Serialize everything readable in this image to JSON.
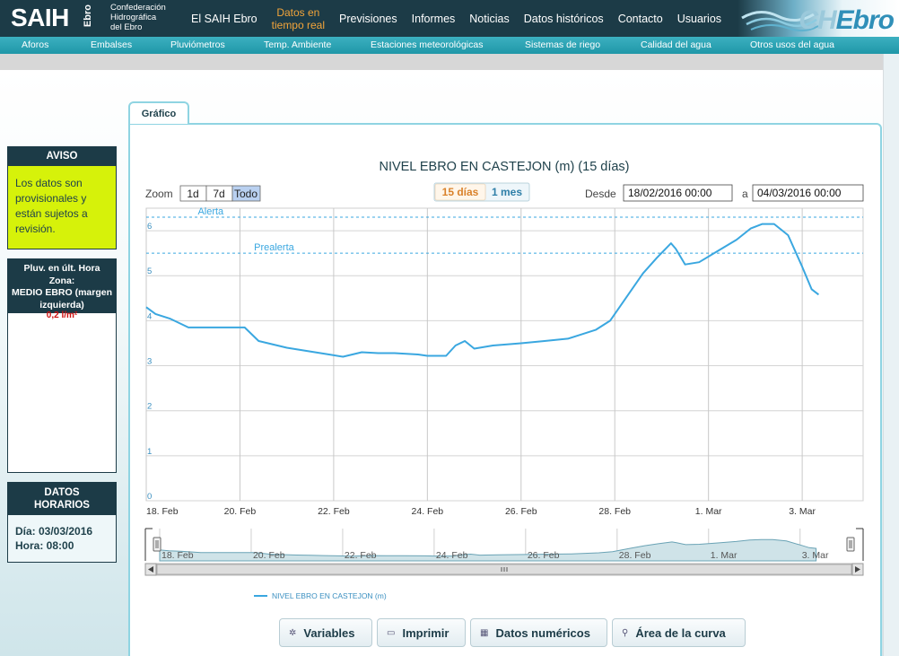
{
  "header": {
    "logo_main": "SAIH",
    "logo_sub": "Ebro",
    "org_lines": [
      "Confederación",
      "Hidrográfica",
      "del Ebro"
    ],
    "nav": [
      {
        "label": "El SAIH Ebro",
        "active": false
      },
      {
        "label": "Datos en tiempo real",
        "active": true,
        "lines": [
          "Datos en",
          "tiempo real"
        ]
      },
      {
        "label": "Previsiones",
        "active": false
      },
      {
        "label": "Informes",
        "active": false
      },
      {
        "label": "Noticias",
        "active": false
      },
      {
        "label": "Datos históricos",
        "active": false
      },
      {
        "label": "Contacto",
        "active": false
      },
      {
        "label": "Usuarios",
        "active": false
      }
    ],
    "right_logo_ch": "CH",
    "right_logo_ebro": "Ebro"
  },
  "subnav": [
    "Aforos",
    "Embalses",
    "Pluviómetros",
    "Temp. Ambiente",
    "Estaciones meteorológicas",
    "Sistemas de riego",
    "Calidad del agua",
    "Otros usos del agua"
  ],
  "aviso": {
    "title": "AVISO",
    "text": "Los datos son provisionales y están sujetos a revisión."
  },
  "pluv": {
    "title_lines": [
      "Pluv. en últ. Hora",
      "Zona:",
      "MEDIO EBRO (margen",
      "izquierda)"
    ],
    "value": "0,2 l/m²"
  },
  "datos_horarios": {
    "title_lines": [
      "DATOS",
      "HORARIOS"
    ],
    "dia": "Día: 03/03/2016",
    "hora": "Hora: 08:00"
  },
  "tab_label": "Gráfico",
  "chart_controls": {
    "zoom_label": "Zoom",
    "zoom_options": [
      "1d",
      "7d",
      "Todo"
    ],
    "zoom_selected": "Todo",
    "range_options": [
      "15 días",
      "1 mes"
    ],
    "range_selected": "15 días",
    "desde_label": "Desde",
    "desde_value": "18/02/2016 00:00",
    "a_label": "a",
    "a_value": "04/03/2016 00:00"
  },
  "colors": {
    "series": "#3aa7e0",
    "threshold": "#3aa7e0",
    "nav_active": "#f2a43a",
    "header_bg": "#1c3b47",
    "aviso_bg": "#d6f20a"
  },
  "chart_data": {
    "type": "line",
    "title": "NIVEL EBRO EN CASTEJON (m) (15 días)",
    "ylim": [
      0,
      6.5
    ],
    "yticks": [
      0,
      1,
      2,
      3,
      4,
      5,
      6
    ],
    "xlim": [
      0,
      15.3
    ],
    "xtick_positions": [
      0,
      2,
      4,
      6,
      8,
      10,
      12,
      14
    ],
    "xtick_labels": [
      "18. Feb",
      "20. Feb",
      "22. Feb",
      "24. Feb",
      "26. Feb",
      "28. Feb",
      "1. Mar",
      "3. Mar"
    ],
    "grid": true,
    "thresholds": [
      {
        "label": "Alerta",
        "value": 6.3
      },
      {
        "label": "Prealerta",
        "value": 5.5
      }
    ],
    "series": [
      {
        "name": "NIVEL EBRO EN CASTEJON (m)",
        "x": [
          0,
          0.2,
          0.5,
          0.9,
          1.3,
          1.7,
          2.1,
          2.4,
          2.6,
          3.0,
          3.3,
          3.6,
          3.9,
          4.2,
          4.6,
          4.95,
          5.05,
          5.3,
          5.8,
          6.0,
          6.2,
          6.4,
          6.6,
          6.8,
          7.0,
          7.4,
          8.0,
          8.5,
          9.0,
          9.3,
          9.6,
          9.9,
          10.3,
          10.6,
          10.9,
          11.2,
          11.3,
          11.5,
          11.8,
          12.2,
          12.6,
          12.9,
          13.15,
          13.4,
          13.7,
          14.0,
          14.2,
          14.35
        ],
        "y": [
          4.3,
          4.15,
          4.05,
          3.85,
          3.85,
          3.85,
          3.85,
          3.55,
          3.5,
          3.4,
          3.35,
          3.3,
          3.25,
          3.2,
          3.3,
          3.28,
          3.28,
          3.28,
          3.25,
          3.22,
          3.22,
          3.22,
          3.45,
          3.55,
          3.38,
          3.45,
          3.5,
          3.55,
          3.6,
          3.7,
          3.8,
          4.0,
          4.6,
          5.05,
          5.4,
          5.72,
          5.6,
          5.25,
          5.3,
          5.55,
          5.8,
          6.05,
          6.15,
          6.15,
          5.9,
          5.2,
          4.7,
          4.58
        ]
      }
    ],
    "legend": "bottom-left"
  },
  "navigator_labels": [
    "18. Feb",
    "20. Feb",
    "22. Feb",
    "24. Feb",
    "26. Feb",
    "28. Feb",
    "1. Mar",
    "3. Mar"
  ],
  "buttons": [
    {
      "label": "Variables",
      "icon": "gear-icon"
    },
    {
      "label": "Imprimir",
      "icon": "printer-icon"
    },
    {
      "label": "Datos numéricos",
      "icon": "table-icon"
    },
    {
      "label": "Área de la curva",
      "icon": "search-icon"
    }
  ]
}
